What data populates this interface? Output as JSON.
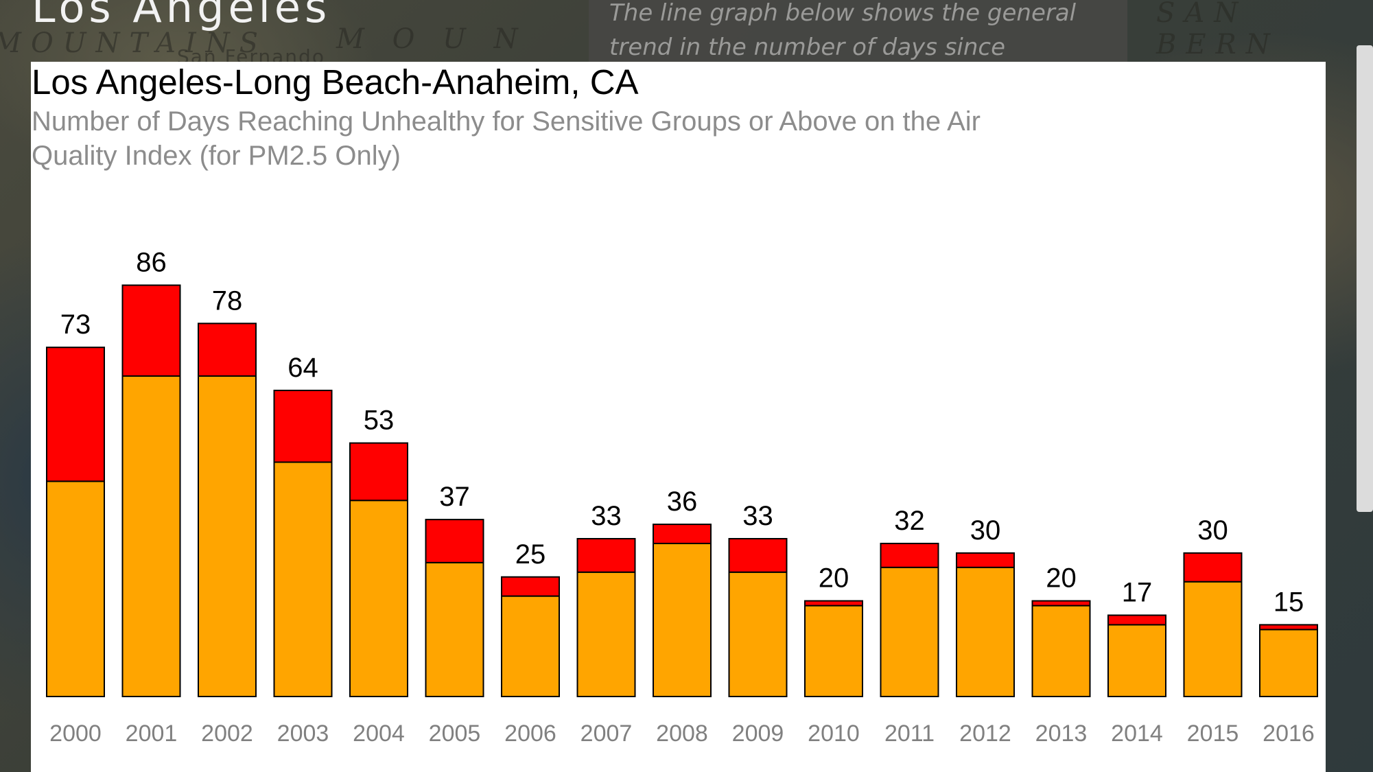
{
  "slide": {
    "title": "Los Angeles",
    "description": "The line graph below shows the general trend in the number of days since"
  },
  "map_labels": [
    "MOUNTAINS",
    "San Fernando",
    "M O U N",
    "SAN BERN"
  ],
  "colors": {
    "usg_bar": "#FFA500",
    "above_bar": "#FF0000",
    "bar_outline": "#000000",
    "tick_label": "#808080"
  },
  "chart_data": {
    "type": "bar",
    "stacked": true,
    "title": "Los Angeles-Long Beach-Anaheim, CA",
    "subtitle": "Number of Days Reaching Unhealthy for Sensitive Groups or Above on the Air Quality Index (for PM2.5 Only)",
    "categories": [
      "2000",
      "2001",
      "2002",
      "2003",
      "2004",
      "2005",
      "2006",
      "2007",
      "2008",
      "2009",
      "2010",
      "2011",
      "2012",
      "2013",
      "2014",
      "2015",
      "2016"
    ],
    "totals": [
      73,
      86,
      78,
      64,
      53,
      37,
      25,
      33,
      36,
      33,
      20,
      32,
      30,
      20,
      17,
      30,
      15
    ],
    "series": [
      {
        "color": "#FFA500",
        "values": [
          45,
          67,
          67,
          49,
          41,
          28,
          21,
          26,
          32,
          26,
          19,
          27,
          27,
          19,
          15,
          24,
          14
        ]
      },
      {
        "color": "#FF0000",
        "values": [
          28,
          19,
          11,
          15,
          12,
          9,
          4,
          7,
          4,
          7,
          1,
          5,
          3,
          1,
          2,
          6,
          1
        ]
      }
    ],
    "ylim": [
      0,
      100
    ],
    "grid": false,
    "xlabel": "",
    "ylabel": ""
  }
}
